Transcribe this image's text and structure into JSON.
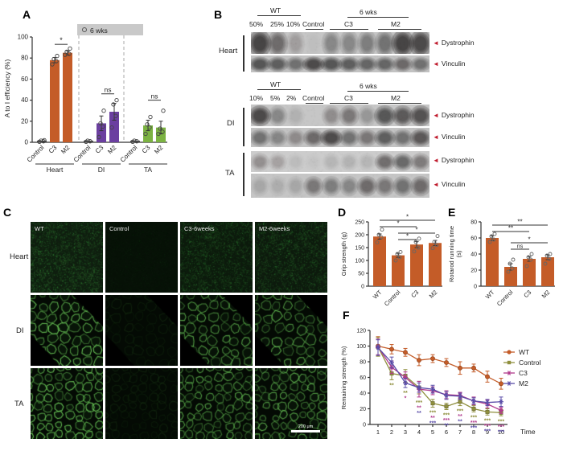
{
  "panels": {
    "A": {
      "label": "A"
    },
    "B": {
      "label": "B",
      "arrow_color": "#C01B2D",
      "sections": [
        {
          "tissue": "Heart",
          "wt": "WT",
          "dilutions": [
            "50%",
            "25%",
            "10%"
          ],
          "control": "Control",
          "weeks": "6 wks",
          "g1": "C3",
          "g2": "M2",
          "bands": [
            "Dystrophin",
            "Vinculin"
          ]
        },
        {
          "tissue": "DI",
          "wt": "WT",
          "dilutions": [
            "10%",
            "5%",
            "2%"
          ],
          "control": "Control",
          "weeks": "6 wks",
          "g1": "C3",
          "g2": "M2",
          "bands": [
            "Dystrophin",
            "Vinculin"
          ]
        },
        {
          "tissue": "TA",
          "bands": [
            "Dystrophin",
            "Vinculin"
          ]
        }
      ]
    },
    "C": {
      "label": "C",
      "columns": [
        "WT",
        "Control",
        "C3-6weeks",
        "M2-6weeks"
      ],
      "rows": [
        "Heart",
        "DI",
        "TA"
      ],
      "scale_bar": "200 μm"
    },
    "D": {
      "label": "D"
    },
    "E": {
      "label": "E"
    },
    "F": {
      "label": "F"
    }
  },
  "chart_data": [
    {
      "id": "A",
      "type": "bar",
      "ylabel": "A to I efficiency (%)",
      "ylim": [
        0,
        100
      ],
      "yticks": [
        0,
        20,
        40,
        60,
        80,
        100
      ],
      "legend": {
        "label": "6 wks",
        "marker": "circle"
      },
      "groups": [
        {
          "name": "Heart",
          "color": "#C45C28",
          "bars": [
            {
              "label": "Control",
              "value": 1,
              "err": 0,
              "points": [
                0.5,
                1,
                1.5,
                2
              ]
            },
            {
              "label": "C3",
              "value": 78,
              "err": 2.5,
              "points": [
                74,
                77,
                79,
                82
              ]
            },
            {
              "label": "M2",
              "value": 85,
              "err": 2,
              "points": [
                83,
                84,
                86,
                89
              ]
            }
          ],
          "sig": "*"
        },
        {
          "name": "DI",
          "color": "#6B3FA0",
          "bars": [
            {
              "label": "Control",
              "value": 1,
              "err": 0,
              "points": [
                0.5,
                1,
                1.5
              ]
            },
            {
              "label": "C3",
              "value": 18,
              "err": 7,
              "points": [
                5,
                15,
                18,
                30
              ]
            },
            {
              "label": "M2",
              "value": 29,
              "err": 8,
              "points": [
                14,
                25,
                36,
                40
              ]
            }
          ],
          "sig": "ns"
        },
        {
          "name": "TA",
          "color": "#7CB342",
          "bars": [
            {
              "label": "Control",
              "value": 1,
              "err": 0,
              "points": [
                0.5,
                1,
                1.5
              ]
            },
            {
              "label": "C3",
              "value": 16,
              "err": 5,
              "points": [
                8,
                14,
                17,
                24
              ]
            },
            {
              "label": "M2",
              "value": 14,
              "err": 6,
              "points": [
                8,
                10,
                13,
                30
              ]
            }
          ],
          "sig": "ns"
        }
      ]
    },
    {
      "id": "D",
      "type": "bar",
      "color": "#C45C28",
      "ylabel": "Grip strength (g)",
      "ylim": [
        0,
        250
      ],
      "yticks": [
        0,
        50,
        100,
        150,
        200,
        250
      ],
      "bars": [
        {
          "label": "WT",
          "value": 193,
          "err": 10,
          "points": [
            170,
            190,
            200,
            220
          ]
        },
        {
          "label": "Control",
          "value": 120,
          "err": 8,
          "points": [
            100,
            113,
            125,
            133
          ]
        },
        {
          "label": "C3",
          "value": 162,
          "err": 12,
          "points": [
            135,
            150,
            172,
            185
          ]
        },
        {
          "label": "M2",
          "value": 168,
          "err": 10,
          "points": [
            148,
            160,
            172,
            195
          ]
        }
      ],
      "sig": [
        {
          "from": 0,
          "to": 3,
          "text": "*"
        },
        {
          "from": 0,
          "to": 2,
          "text": "*"
        },
        {
          "from": 1,
          "to": 3,
          "text": "*"
        },
        {
          "from": 1,
          "to": 2,
          "text": "*"
        }
      ]
    },
    {
      "id": "E",
      "type": "bar",
      "color": "#C45C28",
      "ylabel": "Rotarod running time",
      "ylabel2": "(s)",
      "ylim": [
        0,
        80
      ],
      "yticks": [
        0,
        20,
        40,
        60,
        80
      ],
      "bars": [
        {
          "label": "WT",
          "value": 60,
          "err": 3,
          "points": [
            55,
            58,
            62,
            65
          ]
        },
        {
          "label": "Control",
          "value": 24,
          "err": 4,
          "points": [
            18,
            22,
            28,
            33
          ]
        },
        {
          "label": "C3",
          "value": 34,
          "err": 3,
          "points": [
            25,
            33,
            36,
            40
          ]
        },
        {
          "label": "M2",
          "value": 36,
          "err": 3,
          "points": [
            28,
            34,
            38,
            40
          ]
        }
      ],
      "sig": [
        {
          "from": 0,
          "to": 3,
          "text": "**"
        },
        {
          "from": 0,
          "to": 2,
          "text": "**"
        },
        {
          "from": 1,
          "to": 3,
          "text": "*"
        },
        {
          "from": 1,
          "to": 2,
          "text": "ns"
        }
      ]
    },
    {
      "id": "F",
      "type": "line",
      "ylabel": "Remaining strength (%)",
      "xlabel": "Time",
      "ylim": [
        0,
        120
      ],
      "yticks": [
        0,
        20,
        40,
        60,
        80,
        100,
        120
      ],
      "x": [
        1,
        2,
        3,
        4,
        5,
        6,
        7,
        8,
        9,
        10
      ],
      "legend_position": "right",
      "series": [
        {
          "name": "WT",
          "color": "#C45C28",
          "marker": "circle",
          "values": [
            100,
            96,
            92,
            82,
            84,
            79,
            72,
            72,
            61,
            52
          ],
          "err": [
            12,
            6,
            5,
            7,
            5,
            5,
            8,
            5,
            7,
            7
          ]
        },
        {
          "name": "Control",
          "color": "#8F8F3D",
          "marker": "square",
          "values": [
            99,
            65,
            62,
            47,
            27,
            23,
            29,
            20,
            16,
            15
          ],
          "err": [
            12,
            8,
            8,
            8,
            5,
            4,
            5,
            4,
            4,
            4
          ]
        },
        {
          "name": "C3",
          "color": "#B03A8C",
          "marker": "star",
          "values": [
            99,
            73,
            60,
            45,
            43,
            38,
            37,
            30,
            26,
            18
          ],
          "err": [
            10,
            8,
            7,
            10,
            5,
            5,
            4,
            5,
            5,
            4
          ]
        },
        {
          "name": "M2",
          "color": "#5B4EA8",
          "marker": "star",
          "values": [
            98,
            79,
            53,
            47,
            45,
            37,
            36,
            30,
            28,
            29
          ],
          "err": [
            10,
            7,
            6,
            6,
            5,
            5,
            4,
            4,
            4,
            6
          ]
        }
      ],
      "sig_marks": [
        {
          "x": 2,
          "marks": [
            {
              "text": "**",
              "color": "#8F8F3D"
            }
          ]
        },
        {
          "x": 3,
          "marks": [
            {
              "text": "**",
              "color": "#8F8F3D"
            },
            {
              "text": "*",
              "color": "#B03A8C"
            }
          ]
        },
        {
          "x": 4,
          "marks": [
            {
              "text": "***",
              "color": "#8F8F3D"
            },
            {
              "text": "**",
              "color": "#B03A8C"
            },
            {
              "text": "**",
              "color": "#5B4EA8"
            }
          ]
        },
        {
          "x": 5,
          "marks": [
            {
              "text": "***",
              "color": "#8F8F3D"
            },
            {
              "text": "**",
              "color": "#B03A8C"
            },
            {
              "text": "***",
              "color": "#5B4EA8"
            }
          ]
        },
        {
          "x": 6,
          "marks": [
            {
              "text": "***",
              "color": "#8F8F3D"
            },
            {
              "text": "***",
              "color": "#B03A8C"
            },
            {
              "text": "**",
              "color": "#5B4EA8"
            }
          ]
        },
        {
          "x": 7,
          "marks": [
            {
              "text": "***",
              "color": "#8F8F3D"
            },
            {
              "text": "**",
              "color": "#B03A8C"
            },
            {
              "text": "**",
              "color": "#5B4EA8"
            }
          ]
        },
        {
          "x": 8,
          "marks": [
            {
              "text": "***",
              "color": "#8F8F3D"
            },
            {
              "text": "***",
              "color": "#B03A8C"
            },
            {
              "text": "***",
              "color": "#5B4EA8"
            }
          ]
        },
        {
          "x": 9,
          "marks": [
            {
              "text": "***",
              "color": "#8F8F3D"
            },
            {
              "text": "***",
              "color": "#B03A8C"
            },
            {
              "text": "***",
              "color": "#5B4EA8"
            }
          ]
        },
        {
          "x": 10,
          "marks": [
            {
              "text": "***",
              "color": "#8F8F3D"
            },
            {
              "text": "***",
              "color": "#B03A8C"
            },
            {
              "text": "***",
              "color": "#5B4EA8"
            }
          ]
        }
      ]
    }
  ]
}
